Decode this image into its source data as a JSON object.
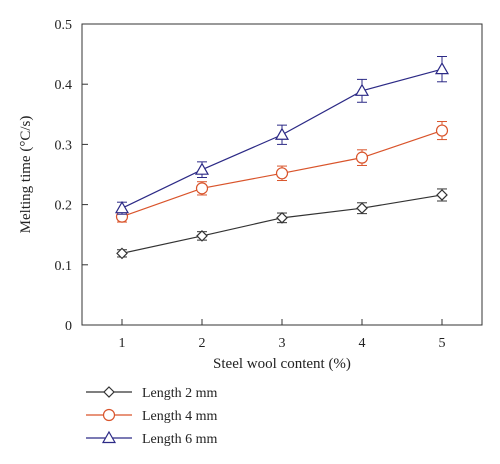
{
  "chart_data": {
    "type": "line",
    "title": "",
    "xlabel": "Steel wool content (%)",
    "ylabel": "Melting time (°C/s)",
    "xlim": [
      0.5,
      5.5
    ],
    "ylim": [
      0,
      0.5
    ],
    "xticks": [
      1,
      2,
      3,
      4,
      5
    ],
    "xtick_labels": [
      "1",
      "2",
      "3",
      "4",
      "5"
    ],
    "yticks": [
      0,
      0.1,
      0.2,
      0.3,
      0.4,
      0.5
    ],
    "ytick_labels": [
      "0",
      "0.1",
      "0.2",
      "0.3",
      "0.4",
      "0.5"
    ],
    "grid": false,
    "legend_position": "bottom-left",
    "x": [
      1,
      2,
      3,
      4,
      5
    ],
    "series": [
      {
        "name": "Length 2 mm",
        "marker": "diamond",
        "color": "#333333",
        "values": [
          0.119,
          0.148,
          0.178,
          0.194,
          0.216
        ],
        "errors": [
          0.006,
          0.007,
          0.008,
          0.009,
          0.01
        ]
      },
      {
        "name": "Length 4 mm",
        "marker": "circle",
        "color": "#d9542b",
        "values": [
          0.18,
          0.227,
          0.252,
          0.278,
          0.323
        ],
        "errors": [
          0.009,
          0.011,
          0.012,
          0.013,
          0.015
        ]
      },
      {
        "name": "Length 6 mm",
        "marker": "triangle",
        "color": "#2c2a86",
        "values": [
          0.194,
          0.258,
          0.316,
          0.389,
          0.425
        ],
        "errors": [
          0.01,
          0.013,
          0.016,
          0.019,
          0.021
        ]
      }
    ]
  }
}
